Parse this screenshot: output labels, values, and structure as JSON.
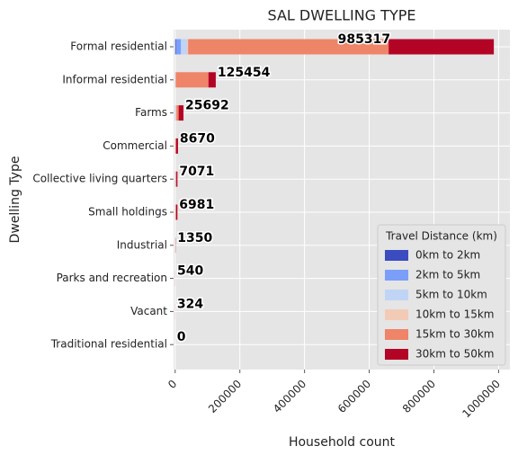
{
  "chart_data": {
    "type": "barh_stacked",
    "title": "SAL DWELLING TYPE",
    "xlabel": "Household count",
    "ylabel": "Dwelling Type",
    "categories": [
      "Formal residential",
      "Informal residential",
      "Farms",
      "Commercial",
      "Collective living quarters",
      "Small holdings",
      "Industrial",
      "Parks and recreation",
      "Vacant",
      "Traditional residential"
    ],
    "series": [
      {
        "name": "0km to 2km",
        "color": "#3b4cc0",
        "values": [
          2000,
          0,
          200,
          0,
          100,
          0,
          0,
          0,
          0,
          0
        ]
      },
      {
        "name": "2km to 5km",
        "color": "#7b9ff9",
        "values": [
          16000,
          300,
          500,
          0,
          300,
          100,
          50,
          40,
          24,
          0
        ]
      },
      {
        "name": "5km to 10km",
        "color": "#c0d4f5",
        "values": [
          19000,
          500,
          1000,
          200,
          500,
          300,
          100,
          100,
          50,
          0
        ]
      },
      {
        "name": "10km to 15km",
        "color": "#f2cbb7",
        "values": [
          3000,
          1000,
          2000,
          500,
          671,
          500,
          200,
          100,
          50,
          0
        ]
      },
      {
        "name": "15km to 30km",
        "color": "#ee8468",
        "values": [
          620000,
          101000,
          7000,
          2000,
          2000,
          2081,
          500,
          150,
          100,
          0
        ]
      },
      {
        "name": "30km to 50km",
        "color": "#b40426",
        "values": [
          325317,
          22654,
          14992,
          5970,
          3500,
          4000,
          500,
          150,
          100,
          0
        ]
      }
    ],
    "totals": [
      985317,
      125454,
      25692,
      8670,
      7071,
      6981,
      1350,
      540,
      324,
      0
    ],
    "xlim": [
      -5000,
      1035000
    ],
    "xticks": [
      0,
      200000,
      400000,
      600000,
      800000,
      1000000
    ],
    "grid": true,
    "legend_title": "Travel Distance (km)",
    "legend_position": "lower right"
  }
}
